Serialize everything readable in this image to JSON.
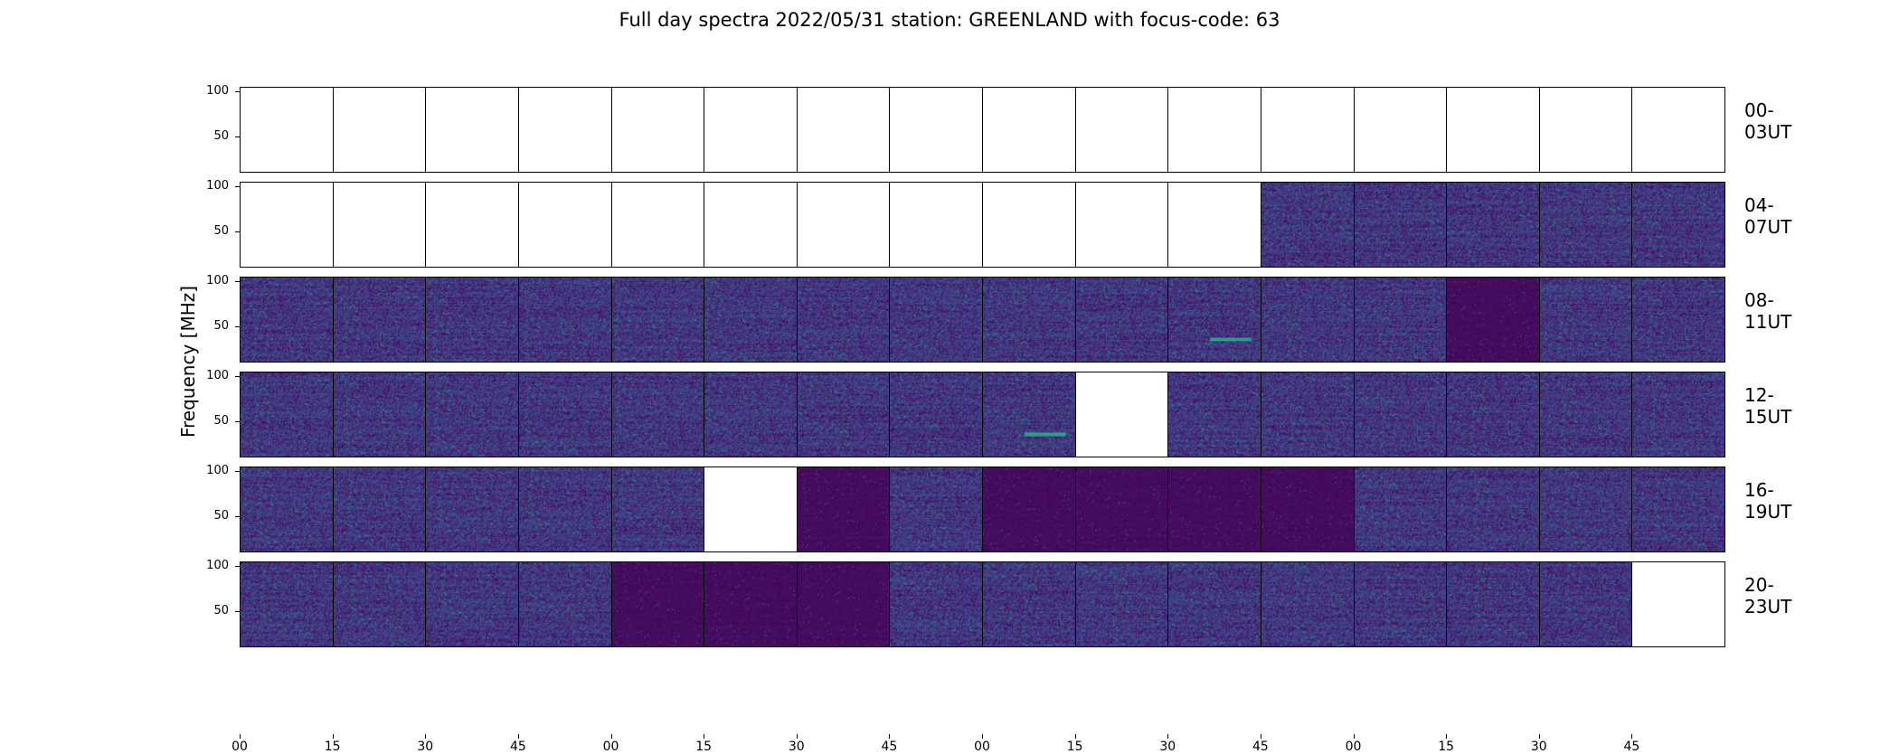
{
  "title": "Full day spectra 2022/05/31 station: GREENLAND with focus-code: 63",
  "chart_data": {
    "type": "heatmap",
    "title": "Full day spectra 2022/05/31 station: GREENLAND with focus-code: 63",
    "ylabel": "Frequency [MHz]",
    "xlabel": "",
    "ylim": [
      10,
      105
    ],
    "yticks": [
      "100",
      "50"
    ],
    "xticks": [
      "00",
      "15",
      "30",
      "45",
      "00",
      "15",
      "30",
      "45",
      "00",
      "15",
      "30",
      "45",
      "00",
      "15",
      "30",
      "45"
    ],
    "colormap": "viridis",
    "row_labels": [
      "00-03UT",
      "04-07UT",
      "08-11UT",
      "12-15UT",
      "16-19UT",
      "20-23UT"
    ],
    "panels_per_row": 16,
    "panel_minutes": 15,
    "rows": [
      {
        "label": "00-03UT",
        "panels": [
          "empty",
          "empty",
          "empty",
          "empty",
          "empty",
          "empty",
          "empty",
          "empty",
          "empty",
          "empty",
          "empty",
          "empty",
          "empty",
          "empty",
          "empty",
          "empty"
        ]
      },
      {
        "label": "04-07UT",
        "panels": [
          "empty",
          "empty",
          "empty",
          "empty",
          "empty",
          "empty",
          "empty",
          "empty",
          "empty",
          "empty",
          "empty",
          "data",
          "data",
          "data",
          "data",
          "data"
        ]
      },
      {
        "label": "08-11UT",
        "panels": [
          "data",
          "data",
          "data",
          "data",
          "data",
          "data",
          "data",
          "data",
          "data",
          "data",
          "burst",
          "data",
          "data",
          "quiet",
          "data",
          "data"
        ]
      },
      {
        "label": "12-15UT",
        "panels": [
          "data",
          "data",
          "data",
          "data",
          "data",
          "data",
          "data",
          "data",
          "burst",
          "empty",
          "data",
          "data",
          "data",
          "data",
          "data",
          "data"
        ]
      },
      {
        "label": "16-19UT",
        "panels": [
          "data",
          "data",
          "data",
          "data",
          "data",
          "empty",
          "quiet",
          "data",
          "quiet",
          "quiet",
          "quiet",
          "quiet",
          "data",
          "data",
          "data",
          "data"
        ]
      },
      {
        "label": "20-23UT",
        "panels": [
          "data",
          "data",
          "data",
          "data",
          "quiet",
          "quiet",
          "quiet",
          "data",
          "data",
          "data",
          "data",
          "data",
          "data",
          "data",
          "data",
          "empty"
        ]
      }
    ]
  }
}
